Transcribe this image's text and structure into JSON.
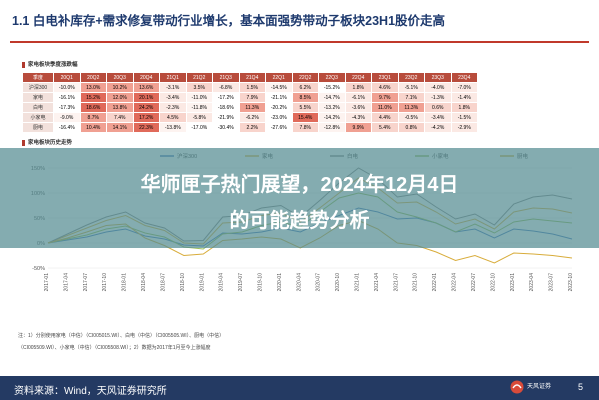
{
  "slide": {
    "title": "1.1 白电补库存+需求修复带动行业增长，基本面强势带动子板块23H1股价走高",
    "table_label": "家电板块季度涨跌幅",
    "chart_label": "家电板块历史走势",
    "footnote_1": "注：1）分别使用家电（中信）（CI005015.WI）、白电（中信）（CI005505.WI）、厨电（中信）",
    "footnote_2": "（CI005509.WI）、小家电（中信）（CI005508.WI）；2）数据为2017年1月至今上涨幅度",
    "source": "资料来源：Wind，天风证券研究所",
    "brand": "天风证券",
    "page_number": "5"
  },
  "overlay": {
    "line1": "华师匣子热门展望，2024年12月4日",
    "line2": "的可能趋势分析"
  },
  "table": {
    "corner": "季度",
    "columns": [
      "20Q1",
      "20Q2",
      "20Q3",
      "20Q4",
      "21Q1",
      "21Q2",
      "21Q3",
      "21Q4",
      "22Q1",
      "22Q2",
      "22Q3",
      "22Q4",
      "23Q1",
      "23Q2",
      "23Q3",
      "23Q4"
    ],
    "rows": [
      {
        "label": "沪深300",
        "values": [
          "-10.0%",
          "13.0%",
          "10.2%",
          "13.6%",
          "-3.1%",
          "3.5%",
          "-6.8%",
          "1.5%",
          "-14.5%",
          "6.2%",
          "-15.2%",
          "1.8%",
          "4.6%",
          "-5.1%",
          "-4.0%",
          "-7.0%"
        ]
      },
      {
        "label": "家电",
        "values": [
          "-16.1%",
          "15.2%",
          "12.0%",
          "20.1%",
          "-3.4%",
          "-11.0%",
          "-17.2%",
          "7.9%",
          "-21.1%",
          "8.5%",
          "-14.7%",
          "-6.1%",
          "9.7%",
          "7.1%",
          "-1.3%",
          "-1.4%"
        ]
      },
      {
        "label": "白电",
        "values": [
          "-17.3%",
          "18.6%",
          "13.8%",
          "24.2%",
          "-2.3%",
          "-11.8%",
          "-18.6%",
          "11.3%",
          "-20.2%",
          "5.5%",
          "-13.2%",
          "-3.6%",
          "11.0%",
          "11.3%",
          "0.6%",
          "1.8%"
        ]
      },
      {
        "label": "小家电",
        "values": [
          "-9.0%",
          "8.7%",
          "7.4%",
          "17.2%",
          "4.5%",
          "-5.8%",
          "-21.9%",
          "-6.2%",
          "-23.0%",
          "15.4%",
          "-14.2%",
          "-4.3%",
          "4.4%",
          "-0.5%",
          "-3.4%",
          "-1.5%"
        ]
      },
      {
        "label": "厨电",
        "values": [
          "-16.4%",
          "10.4%",
          "14.1%",
          "22.3%",
          "-13.8%",
          "-17.0%",
          "-30.4%",
          "2.2%",
          "-27.6%",
          "7.8%",
          "-12.8%",
          "9.9%",
          "5.4%",
          "0.8%",
          "-4.2%",
          "-2.9%"
        ]
      }
    ]
  },
  "chart_data": {
    "type": "line",
    "title": "",
    "xlabel": "",
    "ylabel": "",
    "ylim": [
      -50,
      150
    ],
    "yticks": [
      "150%",
      "100%",
      "50%",
      "0%",
      "-50%"
    ],
    "x": [
      "2017-01",
      "2017-04",
      "2017-07",
      "2017-10",
      "2018-01",
      "2018-04",
      "2018-07",
      "2018-10",
      "2019-01",
      "2019-04",
      "2019-07",
      "2019-10",
      "2020-01",
      "2020-04",
      "2020-07",
      "2020-10",
      "2021-01",
      "2021-04",
      "2021-07",
      "2021-10",
      "2022-01",
      "2022-04",
      "2022-07",
      "2022-10",
      "2023-01",
      "2023-04",
      "2023-07",
      "2023-10"
    ],
    "series": [
      {
        "name": "沪深300",
        "color": "#4a7bbf",
        "values": [
          0,
          6,
          12,
          22,
          28,
          14,
          8,
          -4,
          -6,
          20,
          18,
          22,
          30,
          22,
          40,
          55,
          70,
          62,
          48,
          50,
          40,
          22,
          28,
          10,
          28,
          24,
          18,
          8
        ]
      },
      {
        "name": "家电",
        "color": "#e0b040",
        "values": [
          0,
          15,
          30,
          45,
          55,
          35,
          25,
          0,
          -2,
          40,
          42,
          55,
          60,
          42,
          70,
          100,
          130,
          110,
          80,
          82,
          62,
          38,
          48,
          28,
          62,
          70,
          68,
          60
        ]
      },
      {
        "name": "白电",
        "color": "#8a8a8a",
        "values": [
          0,
          18,
          36,
          52,
          62,
          40,
          30,
          4,
          5,
          52,
          55,
          70,
          75,
          52,
          85,
          120,
          150,
          128,
          92,
          98,
          72,
          48,
          58,
          36,
          78,
          92,
          96,
          88
        ]
      },
      {
        "name": "小家电",
        "color": "#9cbf5a",
        "values": [
          0,
          8,
          16,
          28,
          34,
          20,
          12,
          -8,
          -12,
          18,
          22,
          35,
          42,
          32,
          62,
          90,
          100,
          92,
          62,
          52,
          40,
          22,
          38,
          20,
          42,
          48,
          44,
          40
        ]
      },
      {
        "name": "厨电",
        "color": "#d8ac3a",
        "values": [
          0,
          10,
          22,
          35,
          38,
          10,
          -5,
          -25,
          -22,
          5,
          8,
          12,
          8,
          -10,
          10,
          35,
          45,
          28,
          0,
          -5,
          -18,
          -35,
          -25,
          -40,
          -20,
          -22,
          -25,
          -30
        ]
      }
    ]
  },
  "colors": {
    "accent": "#c0392b",
    "title": "#1e3a6e",
    "bottom_bar": "#243a63"
  }
}
